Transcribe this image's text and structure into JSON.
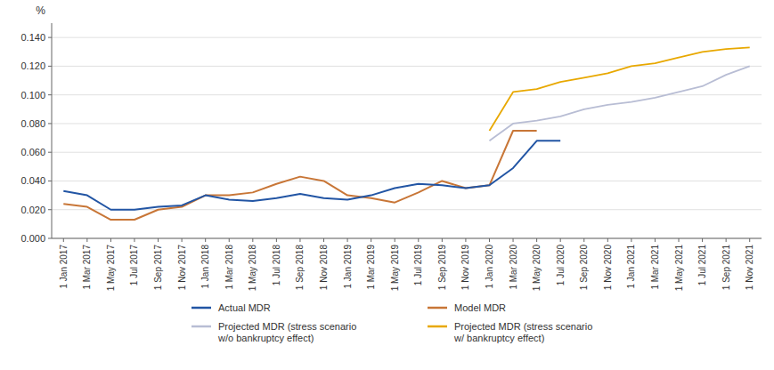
{
  "chart_data": {
    "type": "line",
    "ylabel": "%",
    "ylim": [
      0.0,
      0.15
    ],
    "yticks": [
      {
        "value": 0.0,
        "label": "0.000"
      },
      {
        "value": 0.02,
        "label": "0.020"
      },
      {
        "value": 0.04,
        "label": "0.040"
      },
      {
        "value": 0.06,
        "label": "0.060"
      },
      {
        "value": 0.08,
        "label": "0.080"
      },
      {
        "value": 0.1,
        "label": "0.100"
      },
      {
        "value": 0.12,
        "label": "0.120"
      },
      {
        "value": 0.14,
        "label": "0.140"
      }
    ],
    "grid": true,
    "legend": "bottom",
    "categories": [
      "1 Jan 2017",
      "1 Mar 2017",
      "1 May 2017",
      "1 Jul 2017",
      "1 Sep 2017",
      "1 Nov 2017",
      "1 Jan 2018",
      "1 Mar 2018",
      "1 May 2018",
      "1 Jul 2018",
      "1 Sep 2018",
      "1 Nov 2018",
      "1 Jan 2019",
      "1 Mar 2019",
      "1 May 2019",
      "1 Jul 2019",
      "1 Sep 2019",
      "1 Nov 2019",
      "1 Jan 2020",
      "1 Mar 2020",
      "1 May 2020",
      "1 Jul 2020",
      "1 Sep 2020",
      "1 Nov 2020",
      "1 Jan 2021",
      "1 Mar 2021",
      "1 May 2021",
      "1 Jul 2021",
      "1 Sep 2021",
      "1 Nov 2021"
    ],
    "series": [
      {
        "name": "Actual MDR",
        "color": "#2255A4",
        "values": [
          0.033,
          0.03,
          0.02,
          0.02,
          0.022,
          0.023,
          0.03,
          0.027,
          0.026,
          0.028,
          0.031,
          0.028,
          0.027,
          0.03,
          0.035,
          0.038,
          0.037,
          0.035,
          0.037,
          0.049,
          0.068,
          0.068,
          null,
          null,
          null,
          null,
          null,
          null,
          null,
          null
        ]
      },
      {
        "name": "Model MDR",
        "color": "#C87637",
        "values": [
          0.024,
          0.022,
          0.013,
          0.013,
          0.02,
          0.022,
          0.03,
          0.03,
          0.032,
          0.038,
          0.043,
          0.04,
          0.03,
          0.028,
          0.025,
          0.032,
          0.04,
          0.035,
          0.037,
          0.075,
          0.075,
          null,
          null,
          null,
          null,
          null,
          null,
          null,
          null,
          null
        ]
      },
      {
        "name": "Projected MDR (stress scenario\nw/o bankruptcy effect)",
        "color": "#B8BDD4",
        "values": [
          null,
          null,
          null,
          null,
          null,
          null,
          null,
          null,
          null,
          null,
          null,
          null,
          null,
          null,
          null,
          null,
          null,
          null,
          0.068,
          0.08,
          0.082,
          0.085,
          0.09,
          0.093,
          0.095,
          0.098,
          0.102,
          0.106,
          0.114,
          0.12
        ]
      },
      {
        "name": "Projected MDR (stress scenario\nw/ bankruptcy effect)",
        "color": "#E8A800",
        "values": [
          null,
          null,
          null,
          null,
          null,
          null,
          null,
          null,
          null,
          null,
          null,
          null,
          null,
          null,
          null,
          null,
          null,
          null,
          0.075,
          0.102,
          0.104,
          0.109,
          0.112,
          0.115,
          0.12,
          0.122,
          0.126,
          0.13,
          0.132,
          0.133
        ]
      }
    ]
  }
}
